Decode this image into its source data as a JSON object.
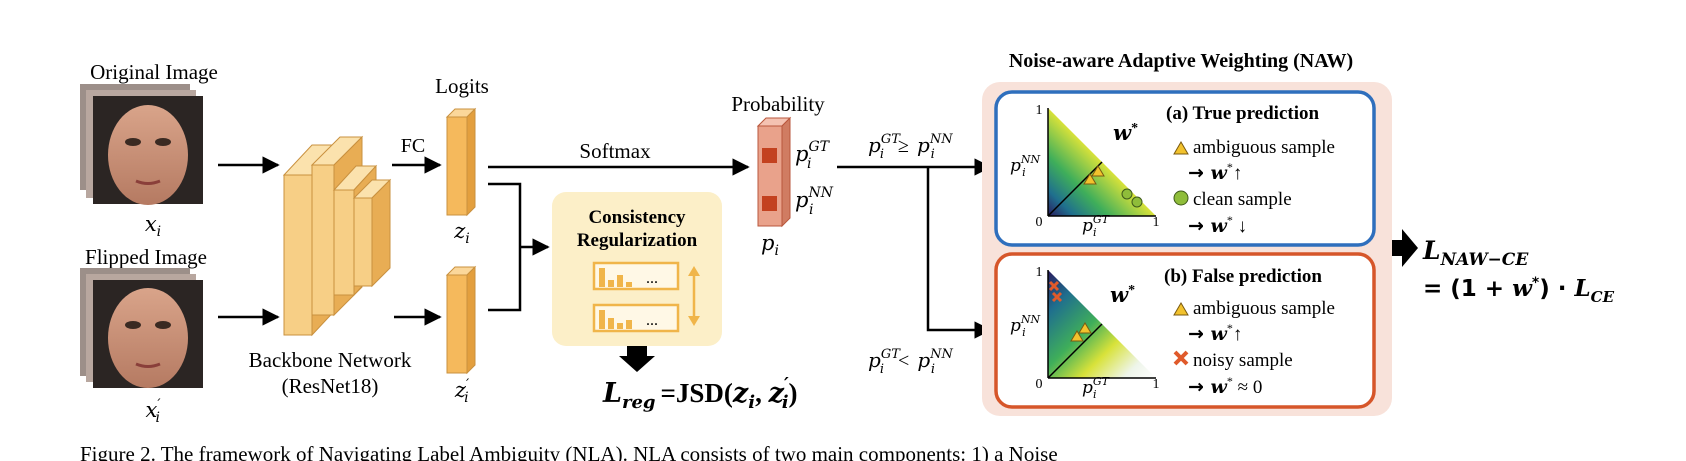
{
  "inputs": {
    "original_label": "Original Image",
    "original_var": "x",
    "original_var_sub": "i",
    "flipped_label": "Flipped Image",
    "flipped_var": "x",
    "flipped_var_sub": "i",
    "flipped_var_prime": "′"
  },
  "backbone": {
    "title": "Backbone Network",
    "subtitle": "(ResNet18)"
  },
  "logits": {
    "title": "Logits",
    "fc_label": "FC",
    "z_var": "z",
    "z_sub": "i",
    "z_prime": "′"
  },
  "softmax_label": "Softmax",
  "probability": {
    "title": "Probability",
    "p_var": "p",
    "p_sub": "i",
    "gt_sup": "GT",
    "nn_sup": "NN"
  },
  "consistency": {
    "title_line1": "Consistency",
    "title_line2": "Regularization",
    "dots": "...",
    "loss_main": "L",
    "loss_sub": "reg",
    "loss_eq": "=JSD(",
    "loss_z": "z",
    "loss_zsub": "i",
    "loss_comma": ", ",
    "loss_z2": "z",
    "loss_z2sub": "i",
    "loss_prime": "′",
    "loss_close": ")"
  },
  "conditions": {
    "ge": "≥",
    "lt": "<"
  },
  "naw": {
    "title": "Noise-aware Adaptive Weighting (NAW)",
    "w_star": "w",
    "star": "*",
    "axis_one": "1",
    "axis_zero": "0",
    "true_panel": {
      "title": "(a) True prediction",
      "item1": "ambiguous sample",
      "arrow1": "→ ",
      "effect1": "↑",
      "item2": "clean sample",
      "arrow2": "→ ",
      "effect2": " ↓"
    },
    "false_panel": {
      "title": "(b) False prediction",
      "item1": "ambiguous sample",
      "arrow1": "→ ",
      "effect1": "↑",
      "item2": "noisy sample",
      "arrow2": "→ ",
      "effect2": " ≈ 0"
    }
  },
  "output": {
    "loss_main": "L",
    "loss_sub": "NAW−CE",
    "eq_prefix": "= (1 + ",
    "eq_suffix": ") · ",
    "ce_main": "L",
    "ce_sub": "CE"
  },
  "caption_fragment": "Figure 2. The framework of Navigating Label Ambiguity (NLA). NLA consists of two main components: 1) a Noise",
  "colors": {
    "block_face": "#f7cf86",
    "block_side": "#e8ad54",
    "logit_bar": "#f5b95c",
    "prob_bar": "#e9a28b",
    "prob_cell": "#c3411f",
    "true_border": "#2f6fbd",
    "false_border": "#d6562a",
    "naw_bg": "#f8e2da",
    "cr_bg": "#fcefc8",
    "triangle_icon": "#f2c22d",
    "circle_icon": "#8fbd3a",
    "cross_icon": "#e05a2b"
  }
}
